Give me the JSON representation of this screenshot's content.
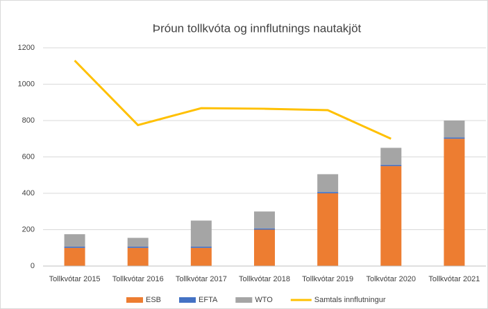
{
  "chart_data": {
    "type": "bar",
    "title": "Þróun tollkvóta og innflutnings nautakjöt",
    "categories": [
      "Tollkvótar 2015",
      "Tollkvótar 2016",
      "Tollkvótar 2017",
      "Tollkvótar 2018",
      "Tollkvótar 2019",
      "Tolkvótar 2020",
      "Tollkvótar 2021"
    ],
    "stacked": true,
    "series": [
      {
        "name": "ESB",
        "color": "#ed7d31",
        "values": [
          100,
          100,
          100,
          200,
          400,
          550,
          700
        ]
      },
      {
        "name": "EFTA",
        "color": "#4472c4",
        "values": [
          7,
          7,
          7,
          7,
          7,
          7,
          7
        ]
      },
      {
        "name": "WTO",
        "color": "#a5a5a5",
        "values": [
          68,
          48,
          143,
          93,
          98,
          93,
          93
        ]
      },
      {
        "name": "Samtals innflutningur",
        "type": "line",
        "color": "#ffc000",
        "values": [
          1130,
          775,
          868,
          865,
          857,
          700,
          null
        ]
      }
    ],
    "ylim": [
      0,
      1200
    ],
    "yticks": [
      0,
      200,
      400,
      600,
      800,
      1000,
      1200
    ],
    "grid": true,
    "legend": "bottom"
  }
}
